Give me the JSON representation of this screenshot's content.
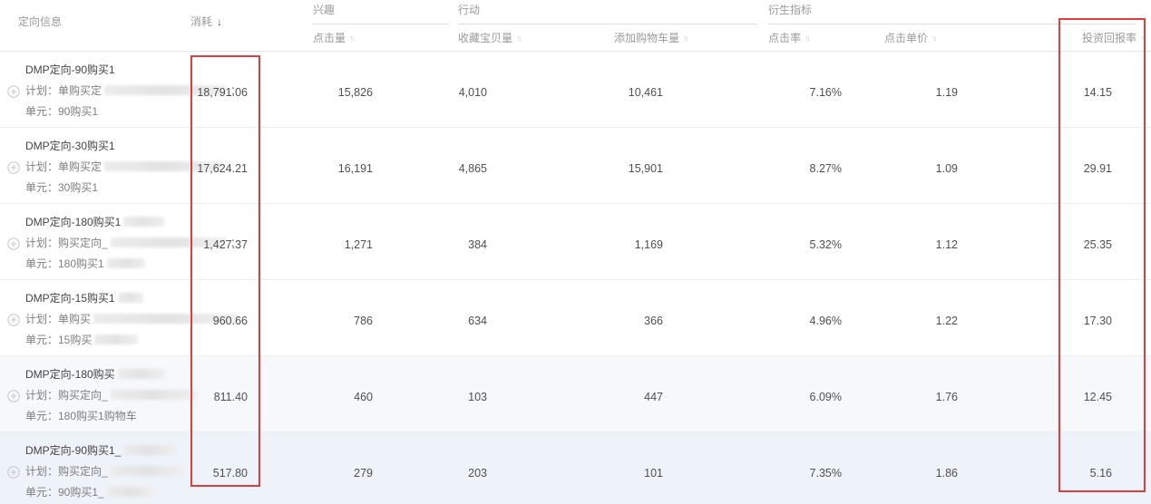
{
  "header": {
    "targeting": "定向信息",
    "spend": "消耗",
    "spend_sort_icon": "↓",
    "sorter_icon": "↑↓",
    "group_interest": "兴趣",
    "group_action": "行动",
    "group_derived": "衍生指标",
    "clicks": "点击量",
    "favorites": "收藏宝贝量",
    "cart_adds": "添加购物车量",
    "ctr": "点击率",
    "cpc": "点击单价",
    "roi": "投资回报率"
  },
  "colors": {
    "highlight_box": "#e03e3e",
    "row_highlight_light": "#f7f8fa",
    "row_highlight_strong": "#eef2f9",
    "header_text": "#9a9a9a"
  },
  "rows": [
    {
      "title": "DMP定向-90购买1",
      "title_blur": 0,
      "plan": "计划：单购买定",
      "plan_blur": 135,
      "plan_suffix": "：",
      "unit": "单元：90购买1",
      "unit_blur": 0,
      "spend": "18,791.06",
      "clicks": "15,826",
      "favorites": "4,010",
      "cart_adds": "10,461",
      "ctr": "7.16%",
      "cpc": "1.19",
      "roi": "14.15"
    },
    {
      "title": "DMP定向-30购买1",
      "title_blur": 0,
      "plan": "计划：单购买定",
      "plan_blur": 130,
      "plan_suffix": "",
      "unit": "单元：30购买1",
      "unit_blur": 0,
      "spend": "17,624.21",
      "clicks": "16,191",
      "favorites": "4,865",
      "cart_adds": "15,901",
      "ctr": "8.27%",
      "cpc": "1.09",
      "roi": "29.91"
    },
    {
      "title": "DMP定向-180购买1",
      "title_blur": 45,
      "plan": "计划：购买定向_",
      "plan_blur": 128,
      "plan_suffix": "：",
      "unit": "单元：180购买1",
      "unit_blur": 42,
      "spend": "1,427.37",
      "clicks": "1,271",
      "favorites": "384",
      "cart_adds": "1,169",
      "ctr": "5.32%",
      "cpc": "1.12",
      "roi": "25.35"
    },
    {
      "title": "DMP定向-15购买1",
      "title_blur": 28,
      "plan": "计划：单购买",
      "plan_blur": 160,
      "plan_suffix": "",
      "unit": "单元：15购买",
      "unit_blur": 48,
      "spend": "960.66",
      "clicks": "786",
      "favorites": "634",
      "cart_adds": "366",
      "ctr": "4.96%",
      "cpc": "1.22",
      "roi": "17.30"
    },
    {
      "title": "DMP定向-180购买",
      "title_blur": 52,
      "plan": "计划：购买定向_",
      "plan_blur": 95,
      "plan_suffix": "",
      "unit": "单元：180购买1购物车",
      "unit_blur": 0,
      "spend": "811.40",
      "clicks": "460",
      "favorites": "103",
      "cart_adds": "447",
      "ctr": "6.09%",
      "cpc": "1.76",
      "roi": "12.45"
    },
    {
      "title": "DMP定向-90购买1_",
      "title_blur": 58,
      "plan": "计划：购买定向_",
      "plan_blur": 80,
      "plan_suffix": "",
      "unit": "单元：90购买1_",
      "unit_blur": 52,
      "spend": "517.80",
      "clicks": "279",
      "favorites": "203",
      "cart_adds": "101",
      "ctr": "7.35%",
      "cpc": "1.86",
      "roi": "5.16"
    }
  ]
}
